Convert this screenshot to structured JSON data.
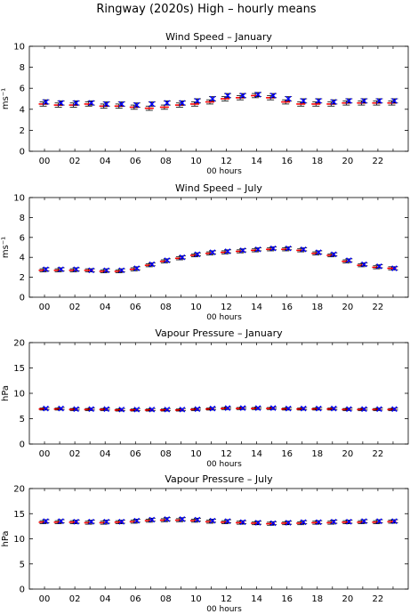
{
  "page": {
    "title": "Ringway (2020s) High – hourly means"
  },
  "chart_data": [
    {
      "type": "scatter",
      "title": "Wind Speed – January",
      "xlabel": "00 hours",
      "ylabel": "ms⁻¹",
      "xlim": [
        -1,
        24
      ],
      "ylim": [
        0,
        10
      ],
      "yticks": [
        0,
        2,
        4,
        6,
        8,
        10
      ],
      "xticks": [
        "00",
        "02",
        "04",
        "06",
        "08",
        "10",
        "12",
        "14",
        "16",
        "18",
        "20",
        "22"
      ],
      "x": [
        0,
        1,
        2,
        3,
        4,
        5,
        6,
        7,
        8,
        9,
        10,
        11,
        12,
        13,
        14,
        15,
        16,
        17,
        18,
        19,
        20,
        21,
        22,
        23
      ],
      "series": [
        {
          "values": [
            4.5,
            4.4,
            4.4,
            4.5,
            4.3,
            4.3,
            4.2,
            4.1,
            4.2,
            4.4,
            4.5,
            4.7,
            5.0,
            5.1,
            5.3,
            5.1,
            4.7,
            4.5,
            4.5,
            4.5,
            4.6,
            4.6,
            4.6,
            4.6
          ],
          "color": "#ff0000"
        },
        {
          "values": [
            4.7,
            4.6,
            4.6,
            4.6,
            4.5,
            4.5,
            4.4,
            4.5,
            4.6,
            4.6,
            4.8,
            5.0,
            5.3,
            5.3,
            5.4,
            5.3,
            5.0,
            4.8,
            4.8,
            4.7,
            4.8,
            4.8,
            4.8,
            4.8
          ],
          "color": "#0000ff"
        }
      ],
      "error_halfwidth": 0.2
    },
    {
      "type": "scatter",
      "title": "Wind Speed – July",
      "xlabel": "00 hours",
      "ylabel": "ms⁻¹",
      "xlim": [
        -1,
        24
      ],
      "ylim": [
        0,
        10
      ],
      "yticks": [
        0,
        2,
        4,
        6,
        8,
        10
      ],
      "xticks": [
        "00",
        "02",
        "04",
        "06",
        "08",
        "10",
        "12",
        "14",
        "16",
        "18",
        "20",
        "22"
      ],
      "x": [
        0,
        1,
        2,
        3,
        4,
        5,
        6,
        7,
        8,
        9,
        10,
        11,
        12,
        13,
        14,
        15,
        16,
        17,
        18,
        19,
        20,
        21,
        22,
        23
      ],
      "series": [
        {
          "values": [
            2.7,
            2.7,
            2.7,
            2.7,
            2.6,
            2.6,
            2.8,
            3.2,
            3.6,
            3.9,
            4.2,
            4.4,
            4.5,
            4.6,
            4.7,
            4.8,
            4.8,
            4.7,
            4.4,
            4.2,
            3.6,
            3.2,
            3.0,
            2.9
          ],
          "color": "#ff0000"
        },
        {
          "values": [
            2.8,
            2.8,
            2.8,
            2.7,
            2.7,
            2.7,
            2.9,
            3.3,
            3.7,
            4.0,
            4.3,
            4.5,
            4.6,
            4.7,
            4.8,
            4.9,
            4.9,
            4.8,
            4.5,
            4.3,
            3.7,
            3.3,
            3.1,
            2.9
          ],
          "color": "#0000ff"
        }
      ],
      "error_halfwidth": 0.15
    },
    {
      "type": "scatter",
      "title": "Vapour Pressure – January",
      "xlabel": "00 hours",
      "ylabel": "hPa",
      "xlim": [
        -1,
        24
      ],
      "ylim": [
        0,
        20
      ],
      "yticks": [
        0,
        5,
        10,
        15,
        20
      ],
      "xticks": [
        "00",
        "02",
        "04",
        "06",
        "08",
        "10",
        "12",
        "14",
        "16",
        "18",
        "20",
        "22"
      ],
      "x": [
        0,
        1,
        2,
        3,
        4,
        5,
        6,
        7,
        8,
        9,
        10,
        11,
        12,
        13,
        14,
        15,
        16,
        17,
        18,
        19,
        20,
        21,
        22,
        23
      ],
      "series": [
        {
          "values": [
            6.9,
            6.9,
            6.8,
            6.8,
            6.8,
            6.7,
            6.7,
            6.7,
            6.7,
            6.7,
            6.8,
            6.9,
            7.0,
            7.0,
            7.0,
            7.0,
            6.9,
            6.9,
            6.9,
            6.9,
            6.8,
            6.8,
            6.8,
            6.8
          ],
          "color": "#ff0000"
        },
        {
          "values": [
            7.0,
            7.0,
            6.9,
            6.9,
            6.9,
            6.8,
            6.8,
            6.8,
            6.8,
            6.8,
            6.9,
            7.0,
            7.1,
            7.1,
            7.1,
            7.1,
            7.0,
            7.0,
            7.0,
            7.0,
            6.9,
            6.9,
            6.9,
            6.9
          ],
          "color": "#0000ff"
        }
      ],
      "error_halfwidth": 0.2
    },
    {
      "type": "scatter",
      "title": "Vapour Pressure – July",
      "xlabel": "00 hours",
      "ylabel": "hPa",
      "xlim": [
        -1,
        24
      ],
      "ylim": [
        0,
        20
      ],
      "yticks": [
        0,
        5,
        10,
        15,
        20
      ],
      "xticks": [
        "00",
        "02",
        "04",
        "06",
        "08",
        "10",
        "12",
        "14",
        "16",
        "18",
        "20",
        "22"
      ],
      "x": [
        0,
        1,
        2,
        3,
        4,
        5,
        6,
        7,
        8,
        9,
        10,
        11,
        12,
        13,
        14,
        15,
        16,
        17,
        18,
        19,
        20,
        21,
        22,
        23
      ],
      "series": [
        {
          "values": [
            13.3,
            13.3,
            13.3,
            13.2,
            13.2,
            13.3,
            13.4,
            13.6,
            13.7,
            13.7,
            13.6,
            13.4,
            13.3,
            13.2,
            13.1,
            13.0,
            13.1,
            13.1,
            13.2,
            13.2,
            13.3,
            13.3,
            13.3,
            13.4
          ],
          "color": "#ff0000"
        },
        {
          "values": [
            13.5,
            13.5,
            13.4,
            13.4,
            13.4,
            13.4,
            13.6,
            13.8,
            13.9,
            13.9,
            13.8,
            13.6,
            13.5,
            13.3,
            13.2,
            13.1,
            13.2,
            13.3,
            13.3,
            13.4,
            13.4,
            13.5,
            13.5,
            13.5
          ],
          "color": "#0000ff"
        }
      ],
      "error_halfwidth": 0.3
    }
  ]
}
